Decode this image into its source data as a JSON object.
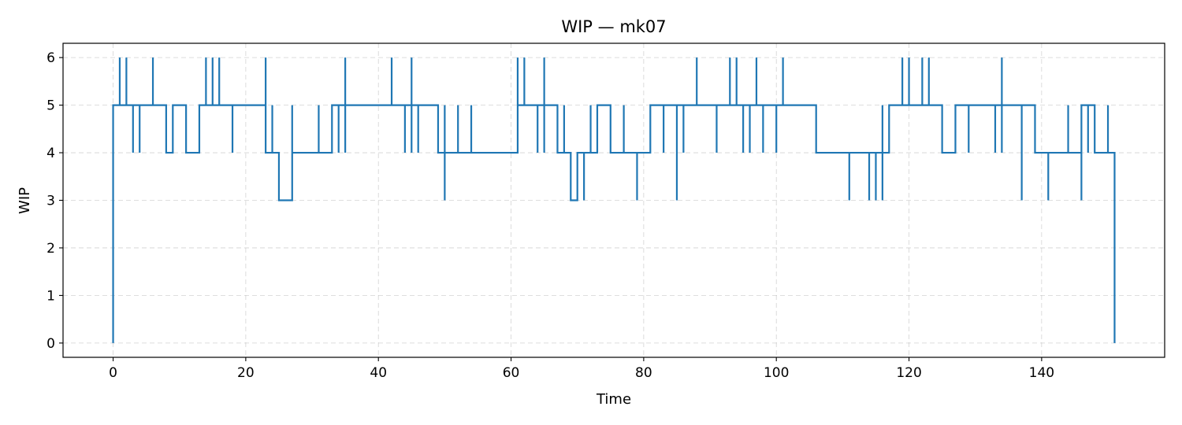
{
  "chart_data": {
    "type": "line",
    "style": "step-post",
    "title": "WIP — mk07",
    "xlabel": "Time",
    "ylabel": "WIP",
    "xlim": [
      -7.55,
      158.55
    ],
    "ylim": [
      -0.3,
      6.3
    ],
    "xticks": [
      0,
      20,
      40,
      60,
      80,
      100,
      120,
      140
    ],
    "yticks": [
      0,
      1,
      2,
      3,
      4,
      5,
      6
    ],
    "grid": true,
    "line_color": "#1f77b4",
    "series": [
      {
        "name": "WIP",
        "points": [
          [
            0,
            0
          ],
          [
            0,
            5
          ],
          [
            1,
            6
          ],
          [
            1,
            5
          ],
          [
            2,
            6
          ],
          [
            2,
            5
          ],
          [
            3,
            5
          ],
          [
            3,
            4
          ],
          [
            3,
            5
          ],
          [
            4,
            4
          ],
          [
            4,
            5
          ],
          [
            6,
            6
          ],
          [
            6,
            5
          ],
          [
            8,
            4
          ],
          [
            9,
            5
          ],
          [
            11,
            4
          ],
          [
            13,
            5
          ],
          [
            14,
            6
          ],
          [
            14,
            5
          ],
          [
            15,
            6
          ],
          [
            15,
            5
          ],
          [
            16,
            6
          ],
          [
            16,
            5
          ],
          [
            18,
            4
          ],
          [
            18,
            5
          ],
          [
            23,
            6
          ],
          [
            23,
            4
          ],
          [
            24,
            5
          ],
          [
            24,
            4
          ],
          [
            25,
            3
          ],
          [
            27,
            5
          ],
          [
            27,
            4
          ],
          [
            31,
            5
          ],
          [
            31,
            4
          ],
          [
            33,
            5
          ],
          [
            34,
            4
          ],
          [
            34,
            5
          ],
          [
            35,
            6
          ],
          [
            35,
            4
          ],
          [
            35,
            5
          ],
          [
            42,
            6
          ],
          [
            42,
            5
          ],
          [
            44,
            4
          ],
          [
            44,
            5
          ],
          [
            45,
            6
          ],
          [
            45,
            4
          ],
          [
            45,
            5
          ],
          [
            46,
            4
          ],
          [
            46,
            5
          ],
          [
            49,
            4
          ],
          [
            50,
            5
          ],
          [
            50,
            3
          ],
          [
            50,
            4
          ],
          [
            52,
            5
          ],
          [
            52,
            4
          ],
          [
            54,
            5
          ],
          [
            54,
            4
          ],
          [
            61,
            6
          ],
          [
            61,
            5
          ],
          [
            62,
            6
          ],
          [
            62,
            5
          ],
          [
            64,
            4
          ],
          [
            64,
            5
          ],
          [
            65,
            6
          ],
          [
            65,
            4
          ],
          [
            65,
            5
          ],
          [
            67,
            4
          ],
          [
            68,
            5
          ],
          [
            68,
            4
          ],
          [
            69,
            3
          ],
          [
            70,
            4
          ],
          [
            71,
            3
          ],
          [
            71,
            4
          ],
          [
            72,
            5
          ],
          [
            72,
            4
          ],
          [
            73,
            5
          ],
          [
            75,
            4
          ],
          [
            77,
            5
          ],
          [
            77,
            4
          ],
          [
            79,
            3
          ],
          [
            79,
            4
          ],
          [
            81,
            5
          ],
          [
            83,
            4
          ],
          [
            83,
            5
          ],
          [
            85,
            3
          ],
          [
            85,
            5
          ],
          [
            86,
            4
          ],
          [
            86,
            5
          ],
          [
            88,
            6
          ],
          [
            88,
            5
          ],
          [
            91,
            4
          ],
          [
            91,
            5
          ],
          [
            93,
            6
          ],
          [
            93,
            5
          ],
          [
            94,
            6
          ],
          [
            94,
            5
          ],
          [
            95,
            4
          ],
          [
            95,
            5
          ],
          [
            96,
            4
          ],
          [
            96,
            5
          ],
          [
            97,
            6
          ],
          [
            97,
            5
          ],
          [
            98,
            4
          ],
          [
            98,
            5
          ],
          [
            100,
            4
          ],
          [
            100,
            5
          ],
          [
            101,
            6
          ],
          [
            101,
            5
          ],
          [
            106,
            4
          ],
          [
            111,
            3
          ],
          [
            111,
            4
          ],
          [
            114,
            3
          ],
          [
            114,
            4
          ],
          [
            115,
            3
          ],
          [
            115,
            4
          ],
          [
            116,
            5
          ],
          [
            116,
            3
          ],
          [
            116,
            4
          ],
          [
            117,
            5
          ],
          [
            119,
            6
          ],
          [
            119,
            5
          ],
          [
            120,
            6
          ],
          [
            120,
            5
          ],
          [
            122,
            6
          ],
          [
            122,
            5
          ],
          [
            123,
            6
          ],
          [
            123,
            5
          ],
          [
            125,
            4
          ],
          [
            127,
            5
          ],
          [
            129,
            4
          ],
          [
            129,
            5
          ],
          [
            133,
            4
          ],
          [
            133,
            5
          ],
          [
            134,
            6
          ],
          [
            134,
            4
          ],
          [
            134,
            5
          ],
          [
            137,
            3
          ],
          [
            137,
            5
          ],
          [
            139,
            4
          ],
          [
            141,
            3
          ],
          [
            141,
            4
          ],
          [
            144,
            5
          ],
          [
            144,
            4
          ],
          [
            146,
            3
          ],
          [
            146,
            5
          ],
          [
            147,
            4
          ],
          [
            147,
            5
          ],
          [
            148,
            4
          ],
          [
            148,
            5
          ],
          [
            148,
            4
          ],
          [
            150,
            5
          ],
          [
            150,
            4
          ],
          [
            151,
            0
          ]
        ]
      }
    ]
  }
}
